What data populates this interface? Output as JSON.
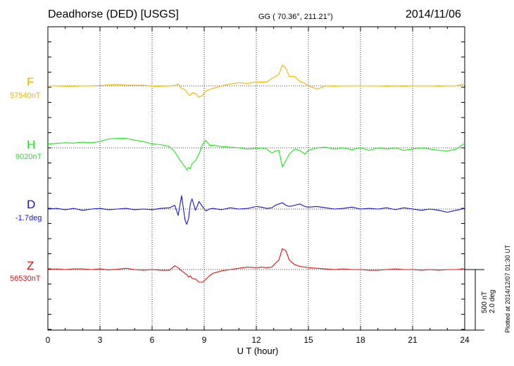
{
  "header": {
    "station": "Deadhorse (DED)  [USGS]",
    "coords": "GG ( 70.36°, 211.21°)",
    "date": "2014/11/06"
  },
  "scale_note": {
    "nt": "500 nT",
    "deg": "2.0 deg"
  },
  "plotted_note": "Plotted at 2014/12/07 01:30 UT",
  "chart_data": {
    "type": "line",
    "xlabel": "U T (hour)",
    "xlim": [
      0,
      24
    ],
    "xticks": [
      0,
      3,
      6,
      9,
      12,
      15,
      18,
      21,
      24
    ],
    "grid": true,
    "series": [
      {
        "name": "F",
        "baseline": "57540nT",
        "color": "#f0b400",
        "x": [
          0,
          0.5,
          1,
          1.5,
          2,
          2.5,
          3,
          3.5,
          4,
          4.5,
          5,
          5.5,
          6,
          6.5,
          7,
          7.3,
          7.5,
          7.7,
          7.9,
          8.0,
          8.1,
          8.2,
          8.3,
          8.5,
          8.7,
          8.9,
          9.1,
          9.3,
          9.5,
          10,
          10.5,
          11,
          11.5,
          12,
          12.3,
          12.6,
          12.9,
          13.1,
          13.3,
          13.5,
          13.7,
          13.9,
          14.2,
          14.5,
          14.8,
          15,
          15.5,
          16,
          16.5,
          17,
          17.5,
          18,
          18.5,
          19,
          19.5,
          20,
          20.5,
          21,
          21.5,
          22,
          22.5,
          23,
          23.5,
          24
        ],
        "values": [
          0,
          0,
          -5,
          -5,
          0,
          0,
          5,
          15,
          20,
          10,
          10,
          10,
          -5,
          -5,
          0,
          5,
          30,
          -40,
          -60,
          -100,
          -140,
          -150,
          -110,
          -120,
          -180,
          -150,
          -80,
          -60,
          -40,
          0,
          30,
          50,
          40,
          60,
          60,
          60,
          120,
          150,
          180,
          330,
          280,
          150,
          150,
          70,
          40,
          0,
          -50,
          0,
          -5,
          0,
          0,
          0,
          0,
          0,
          -5,
          0,
          -5,
          0,
          0,
          0,
          -5,
          0,
          0,
          30
        ]
      },
      {
        "name": "H",
        "baseline": "9020nT",
        "color": "#1ee81e",
        "x": [
          0,
          0.5,
          1,
          1.5,
          2,
          2.5,
          3,
          3.5,
          4,
          4.5,
          5,
          5.5,
          6,
          6.5,
          7,
          7.3,
          7.5,
          7.7,
          7.9,
          8.0,
          8.1,
          8.2,
          8.3,
          8.5,
          8.7,
          8.9,
          9.1,
          9.3,
          9.5,
          10,
          10.5,
          11,
          11.5,
          12,
          12.3,
          12.6,
          12.9,
          13.1,
          13.3,
          13.5,
          13.7,
          13.9,
          14.2,
          14.5,
          14.8,
          15,
          15.5,
          16,
          16.5,
          17,
          17.5,
          18,
          18.5,
          19,
          19.5,
          20,
          20.5,
          21,
          21.5,
          22,
          22.5,
          23,
          23.5,
          24
        ],
        "values": [
          60,
          70,
          80,
          75,
          90,
          80,
          100,
          140,
          150,
          150,
          120,
          100,
          60,
          50,
          20,
          -60,
          -150,
          -230,
          -300,
          -350,
          -310,
          -330,
          -250,
          -200,
          -100,
          50,
          120,
          40,
          40,
          20,
          10,
          0,
          -20,
          -10,
          0,
          -20,
          -80,
          -50,
          -40,
          -300,
          -200,
          -100,
          -20,
          -40,
          -100,
          -40,
          0,
          10,
          -20,
          0,
          -30,
          0,
          -40,
          0,
          -20,
          0,
          -40,
          -20,
          0,
          -20,
          -40,
          -50,
          -20,
          70
        ]
      },
      {
        "name": "D",
        "baseline": "-1.7deg",
        "color": "#1414d2",
        "x": [
          0,
          0.5,
          1,
          1.5,
          2,
          2.5,
          3,
          3.5,
          4,
          4.5,
          5,
          5.5,
          6,
          6.5,
          7,
          7.3,
          7.5,
          7.7,
          7.9,
          8.0,
          8.1,
          8.2,
          8.3,
          8.5,
          8.7,
          8.9,
          9.1,
          9.3,
          9.5,
          10,
          10.5,
          11,
          11.5,
          12,
          12.3,
          12.6,
          12.9,
          13.1,
          13.3,
          13.5,
          13.7,
          13.9,
          14.2,
          14.5,
          14.8,
          15,
          15.5,
          16,
          16.5,
          17,
          17.5,
          18,
          18.5,
          19,
          19.5,
          20,
          20.5,
          21,
          21.5,
          22,
          22.5,
          23,
          23.5,
          24
        ],
        "values": [
          0,
          10,
          -10,
          10,
          -20,
          0,
          10,
          -10,
          0,
          10,
          -10,
          0,
          -10,
          10,
          20,
          60,
          -100,
          210,
          -180,
          -240,
          -150,
          80,
          160,
          -20,
          120,
          40,
          -30,
          0,
          10,
          -10,
          20,
          0,
          10,
          40,
          30,
          10,
          20,
          60,
          80,
          100,
          60,
          40,
          60,
          80,
          40,
          30,
          40,
          20,
          0,
          10,
          30,
          0,
          10,
          0,
          20,
          -10,
          20,
          0,
          -20,
          0,
          -20,
          -50,
          -20,
          10
        ]
      },
      {
        "name": "Z",
        "baseline": "56530nT",
        "color": "#dc1414",
        "x": [
          0,
          0.5,
          1,
          1.5,
          2,
          2.5,
          3,
          3.5,
          4,
          4.5,
          5,
          5.5,
          6,
          6.5,
          7,
          7.3,
          7.5,
          7.7,
          7.9,
          8.0,
          8.1,
          8.2,
          8.3,
          8.5,
          8.7,
          8.9,
          9.1,
          9.3,
          9.5,
          10,
          10.5,
          11,
          11.5,
          12,
          12.3,
          12.6,
          12.9,
          13.1,
          13.3,
          13.5,
          13.7,
          13.9,
          14.2,
          14.5,
          14.8,
          15,
          15.5,
          16,
          16.5,
          17,
          17.5,
          18,
          18.5,
          19,
          19.5,
          20,
          20.5,
          21,
          21.5,
          22,
          22.5,
          23,
          23.5,
          24
        ],
        "values": [
          0,
          10,
          0,
          10,
          10,
          0,
          10,
          -5,
          5,
          20,
          0,
          -10,
          0,
          -10,
          -10,
          60,
          30,
          -20,
          -60,
          -80,
          -120,
          -100,
          -140,
          -150,
          -200,
          -200,
          -150,
          -100,
          -60,
          -20,
          0,
          20,
          40,
          30,
          40,
          30,
          40,
          100,
          150,
          330,
          300,
          150,
          80,
          50,
          40,
          30,
          20,
          10,
          0,
          10,
          0,
          0,
          -10,
          -10,
          0,
          10,
          0,
          0,
          -10,
          0,
          -10,
          0,
          0,
          10
        ]
      }
    ]
  }
}
